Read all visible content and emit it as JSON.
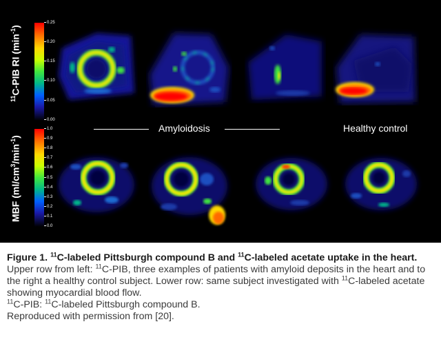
{
  "figure": {
    "upper_scale": {
      "axis_label_pre": "11",
      "axis_label_main": "C-PIB RI (min",
      "axis_label_exp": "-1",
      "axis_label_post": ")",
      "ticks": [
        "0.25",
        "0.20",
        "0.15",
        "0.10",
        "0.05",
        "0.00"
      ]
    },
    "lower_scale": {
      "axis_label_main": "MBF (ml/cm",
      "axis_label_exp1": "3",
      "axis_label_mid": "/min",
      "axis_label_exp2": "-1",
      "axis_label_post": ")",
      "ticks": [
        "1.0",
        "0.9",
        "0.8",
        "0.7",
        "0.6",
        "0.5",
        "0.4",
        "0.3",
        "0.2",
        "0.1",
        "0.0"
      ]
    },
    "group_labels": {
      "amyloidosis": "Amyloidosis",
      "healthy": "Healthy control"
    }
  },
  "caption": {
    "title_pre": "Figure 1. ",
    "title_sup1": "11",
    "title_mid": "C-labeled Pittsburgh compound B and ",
    "title_sup2": "11",
    "title_end": "C-labeled acetate uptake in the heart.",
    "text1_pre": " Upper row from left: ",
    "text1_sup": "11",
    "text1_post": "C-PIB, three examples of patients with amyloid deposits in the heart and to the right a healthy control subject. Lower row: same subject investigated with ",
    "text2_sup": "11",
    "text2_post": "C-labeled acetate showing myocardial blood flow.",
    "abbr_sup1": "11",
    "abbr_mid": "C-PIB: ",
    "abbr_sup2": "11",
    "abbr_post": "C-labeled Pittsburgh compound B.",
    "repro": "Reproduced with permission from [20]."
  }
}
